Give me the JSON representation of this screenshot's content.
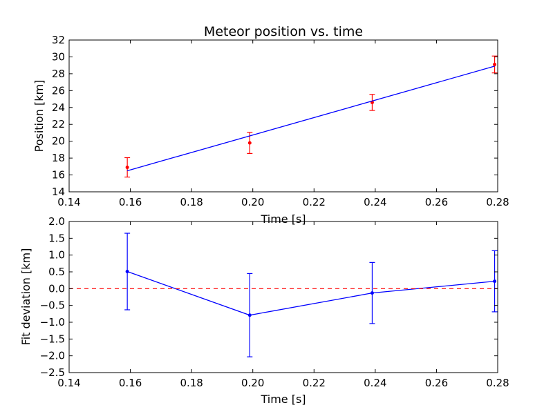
{
  "chart_data": [
    {
      "type": "line",
      "title": "Meteor position vs. time",
      "xlabel": "Time [s]",
      "ylabel": "Position [km]",
      "xlim": [
        0.14,
        0.28
      ],
      "ylim": [
        14,
        32
      ],
      "xticks": [
        0.14,
        0.16,
        0.18,
        0.2,
        0.22,
        0.24,
        0.26,
        0.28
      ],
      "xtick_labels": [
        "0.14",
        "0.16",
        "0.18",
        "0.20",
        "0.22",
        "0.24",
        "0.26",
        "0.28"
      ],
      "yticks": [
        14,
        16,
        18,
        20,
        22,
        24,
        26,
        28,
        30,
        32
      ],
      "ytick_labels": [
        "14",
        "16",
        "18",
        "20",
        "22",
        "24",
        "26",
        "28",
        "30",
        "32"
      ],
      "grid": false,
      "series": [
        {
          "kind": "errorbar",
          "color": "#ff0000",
          "x": [
            0.159,
            0.199,
            0.239,
            0.279
          ],
          "y": [
            16.9,
            19.8,
            24.6,
            29.1
          ],
          "yerr": [
            1.15,
            1.25,
            0.95,
            1.0
          ]
        },
        {
          "kind": "line",
          "color": "#0000ff",
          "x": [
            0.159,
            0.279
          ],
          "y": [
            16.5,
            28.9
          ]
        }
      ]
    },
    {
      "type": "line",
      "title": "",
      "xlabel": "Time [s]",
      "ylabel": "Fit deviation [km]",
      "xlim": [
        0.14,
        0.28
      ],
      "ylim": [
        -2.5,
        2.0
      ],
      "xticks": [
        0.14,
        0.16,
        0.18,
        0.2,
        0.22,
        0.24,
        0.26,
        0.28
      ],
      "xtick_labels": [
        "0.14",
        "0.16",
        "0.18",
        "0.20",
        "0.22",
        "0.24",
        "0.26",
        "0.28"
      ],
      "yticks": [
        -2.5,
        -2.0,
        -1.5,
        -1.0,
        -0.5,
        0.0,
        0.5,
        1.0,
        1.5,
        2.0
      ],
      "ytick_labels": [
        "−2.5",
        "−2.0",
        "−1.5",
        "−1.0",
        "−0.5",
        "0.0",
        "0.5",
        "1.0",
        "1.5",
        "2.0"
      ],
      "grid": false,
      "series": [
        {
          "kind": "errorbar-line",
          "color": "#0000ff",
          "x": [
            0.159,
            0.199,
            0.239,
            0.279
          ],
          "y": [
            0.51,
            -0.79,
            -0.13,
            0.22
          ],
          "yerr": [
            1.14,
            1.24,
            0.91,
            0.91
          ]
        },
        {
          "kind": "hline",
          "color": "#ff0000",
          "dashed": true,
          "y": 0.0
        }
      ]
    }
  ]
}
